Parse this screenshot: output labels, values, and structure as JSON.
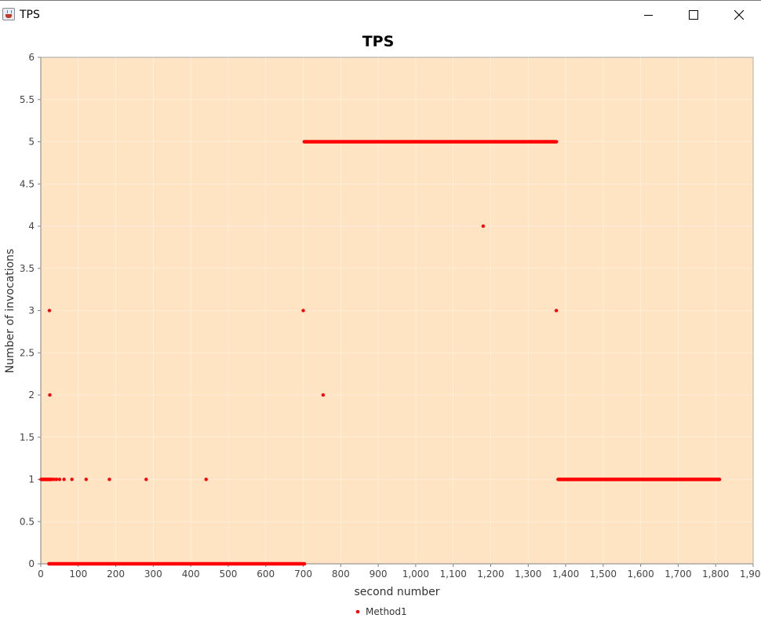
{
  "window": {
    "title": "TPS",
    "icon": "java-cup-icon",
    "buttons": [
      "minimize-icon",
      "maximize-icon",
      "close-icon"
    ]
  },
  "chart_data": {
    "type": "scatter",
    "title": "TPS",
    "xlabel": "second number",
    "ylabel": "Number of invocations",
    "xlim": [
      0,
      1900
    ],
    "ylim": [
      0,
      6
    ],
    "x_ticks": [
      "0",
      "100",
      "200",
      "300",
      "400",
      "500",
      "600",
      "700",
      "800",
      "900",
      "1,000",
      "1,100",
      "1,200",
      "1,300",
      "1,400",
      "1,500",
      "1,600",
      "1,700",
      "1,800",
      "1,900"
    ],
    "y_ticks": [
      "0",
      "0.5",
      "1",
      "1.5",
      "2",
      "2.5",
      "3",
      "3.5",
      "4",
      "4.5",
      "5",
      "5.5",
      "6"
    ],
    "grid": true,
    "legend": "bottom",
    "plot_background": "#FFE4C4",
    "series": [
      {
        "name": "Method1",
        "color": "#FF0000",
        "runs": [
          {
            "y": 0,
            "x_start": 22,
            "x_end": 703
          },
          {
            "y": 5,
            "x_start": 703,
            "x_end": 1375
          },
          {
            "y": 1,
            "x_start": 1380,
            "x_end": 1810
          },
          {
            "y": 1,
            "x_start": 1,
            "x_end": 27
          }
        ],
        "points": [
          {
            "x": 23,
            "y": 3
          },
          {
            "x": 24,
            "y": 2
          },
          {
            "x": 30,
            "y": 1
          },
          {
            "x": 36,
            "y": 1
          },
          {
            "x": 42,
            "y": 1
          },
          {
            "x": 50,
            "y": 1
          },
          {
            "x": 62,
            "y": 1
          },
          {
            "x": 83,
            "y": 1
          },
          {
            "x": 121,
            "y": 1
          },
          {
            "x": 183,
            "y": 1
          },
          {
            "x": 281,
            "y": 1
          },
          {
            "x": 441,
            "y": 1
          },
          {
            "x": 700,
            "y": 3
          },
          {
            "x": 753,
            "y": 2
          },
          {
            "x": 1180,
            "y": 4
          },
          {
            "x": 1375,
            "y": 3
          }
        ]
      }
    ]
  }
}
